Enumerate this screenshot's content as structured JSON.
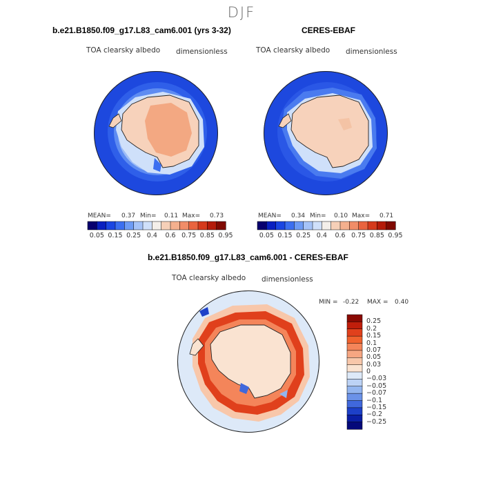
{
  "figure": {
    "season": "DJF"
  },
  "panels": [
    {
      "title": "b.e21.B1850.f09_g17.L83_cam6.001 (yrs 3-32)",
      "left_label": "TOA clearsky albedo",
      "right_label": "dimensionless",
      "stats": {
        "mean_label": "MEAN=",
        "mean": "0.37",
        "min_label": "Min=",
        "min": "0.11",
        "max_label": "Max=",
        "max": "0.73"
      }
    },
    {
      "title": "CERES-EBAF",
      "left_label": "TOA clearsky albedo",
      "right_label": "dimensionless",
      "stats": {
        "mean_label": "MEAN=",
        "mean": "0.34",
        "min_label": "Min=",
        "min": "0.10",
        "max_label": "Max=",
        "max": "0.71"
      }
    },
    {
      "title": "b.e21.B1850.f09_g17.L83_cam6.001 - CERES-EBAF",
      "left_label": "TOA clearsky albedo",
      "right_label": "dimensionless",
      "stats": {
        "min_label": "MIN =",
        "min": "-0.22",
        "max_label": "MAX =",
        "max": "0.40"
      }
    }
  ],
  "chart_data": [
    {
      "type": "heatmap",
      "projection": "south-polar-stereographic",
      "title": "b.e21.B1850.f09_g17.L83_cam6.001 (yrs 3-32)",
      "variable": "TOA clearsky albedo",
      "units": "dimensionless",
      "mean": 0.37,
      "min": 0.11,
      "max": 0.73,
      "colorbar_levels": [
        0.05,
        0.15,
        0.25,
        0.4,
        0.6,
        0.75,
        0.85,
        0.95
      ],
      "colorbar_colors": [
        "#08006e",
        "#0a20c0",
        "#1b46e2",
        "#3c6ff0",
        "#6d9bf5",
        "#a5c3f8",
        "#cfe0fa",
        "#f4efea",
        "#f6d0b8",
        "#f4b08e",
        "#f18d68",
        "#e9643f",
        "#d53a1c",
        "#b41b0a",
        "#7f0a02"
      ]
    },
    {
      "type": "heatmap",
      "projection": "south-polar-stereographic",
      "title": "CERES-EBAF",
      "variable": "TOA clearsky albedo",
      "units": "dimensionless",
      "mean": 0.34,
      "min": 0.1,
      "max": 0.71,
      "colorbar_levels": [
        0.05,
        0.15,
        0.25,
        0.4,
        0.6,
        0.75,
        0.85,
        0.95
      ],
      "colorbar_colors": [
        "#08006e",
        "#0a20c0",
        "#1b46e2",
        "#3c6ff0",
        "#6d9bf5",
        "#a5c3f8",
        "#cfe0fa",
        "#f4efea",
        "#f6d0b8",
        "#f4b08e",
        "#f18d68",
        "#e9643f",
        "#d53a1c",
        "#b41b0a",
        "#7f0a02"
      ]
    },
    {
      "type": "heatmap",
      "projection": "south-polar-stereographic",
      "title": "b.e21.B1850.f09_g17.L83_cam6.001 - CERES-EBAF",
      "variable": "TOA clearsky albedo",
      "units": "dimensionless",
      "min": -0.22,
      "max": 0.4,
      "colorbar_levels": [
        "0.25",
        "0.2",
        "0.15",
        "0.1",
        "0.07",
        "0.05",
        "0.03",
        "0",
        "−0.03",
        "−0.05",
        "−0.07",
        "−0.1",
        "−0.15",
        "−0.2",
        "−0.25"
      ],
      "colorbar_colors": [
        "#8a0a03",
        "#c01e0b",
        "#e0401c",
        "#f0622e",
        "#f4855a",
        "#f6a682",
        "#f8c7aa",
        "#fae3d1",
        "#dde9f8",
        "#bcd2f5",
        "#93b5ef",
        "#6b92e8",
        "#4068dc",
        "#1d40c8",
        "#0a1ea4",
        "#04097a"
      ]
    }
  ]
}
